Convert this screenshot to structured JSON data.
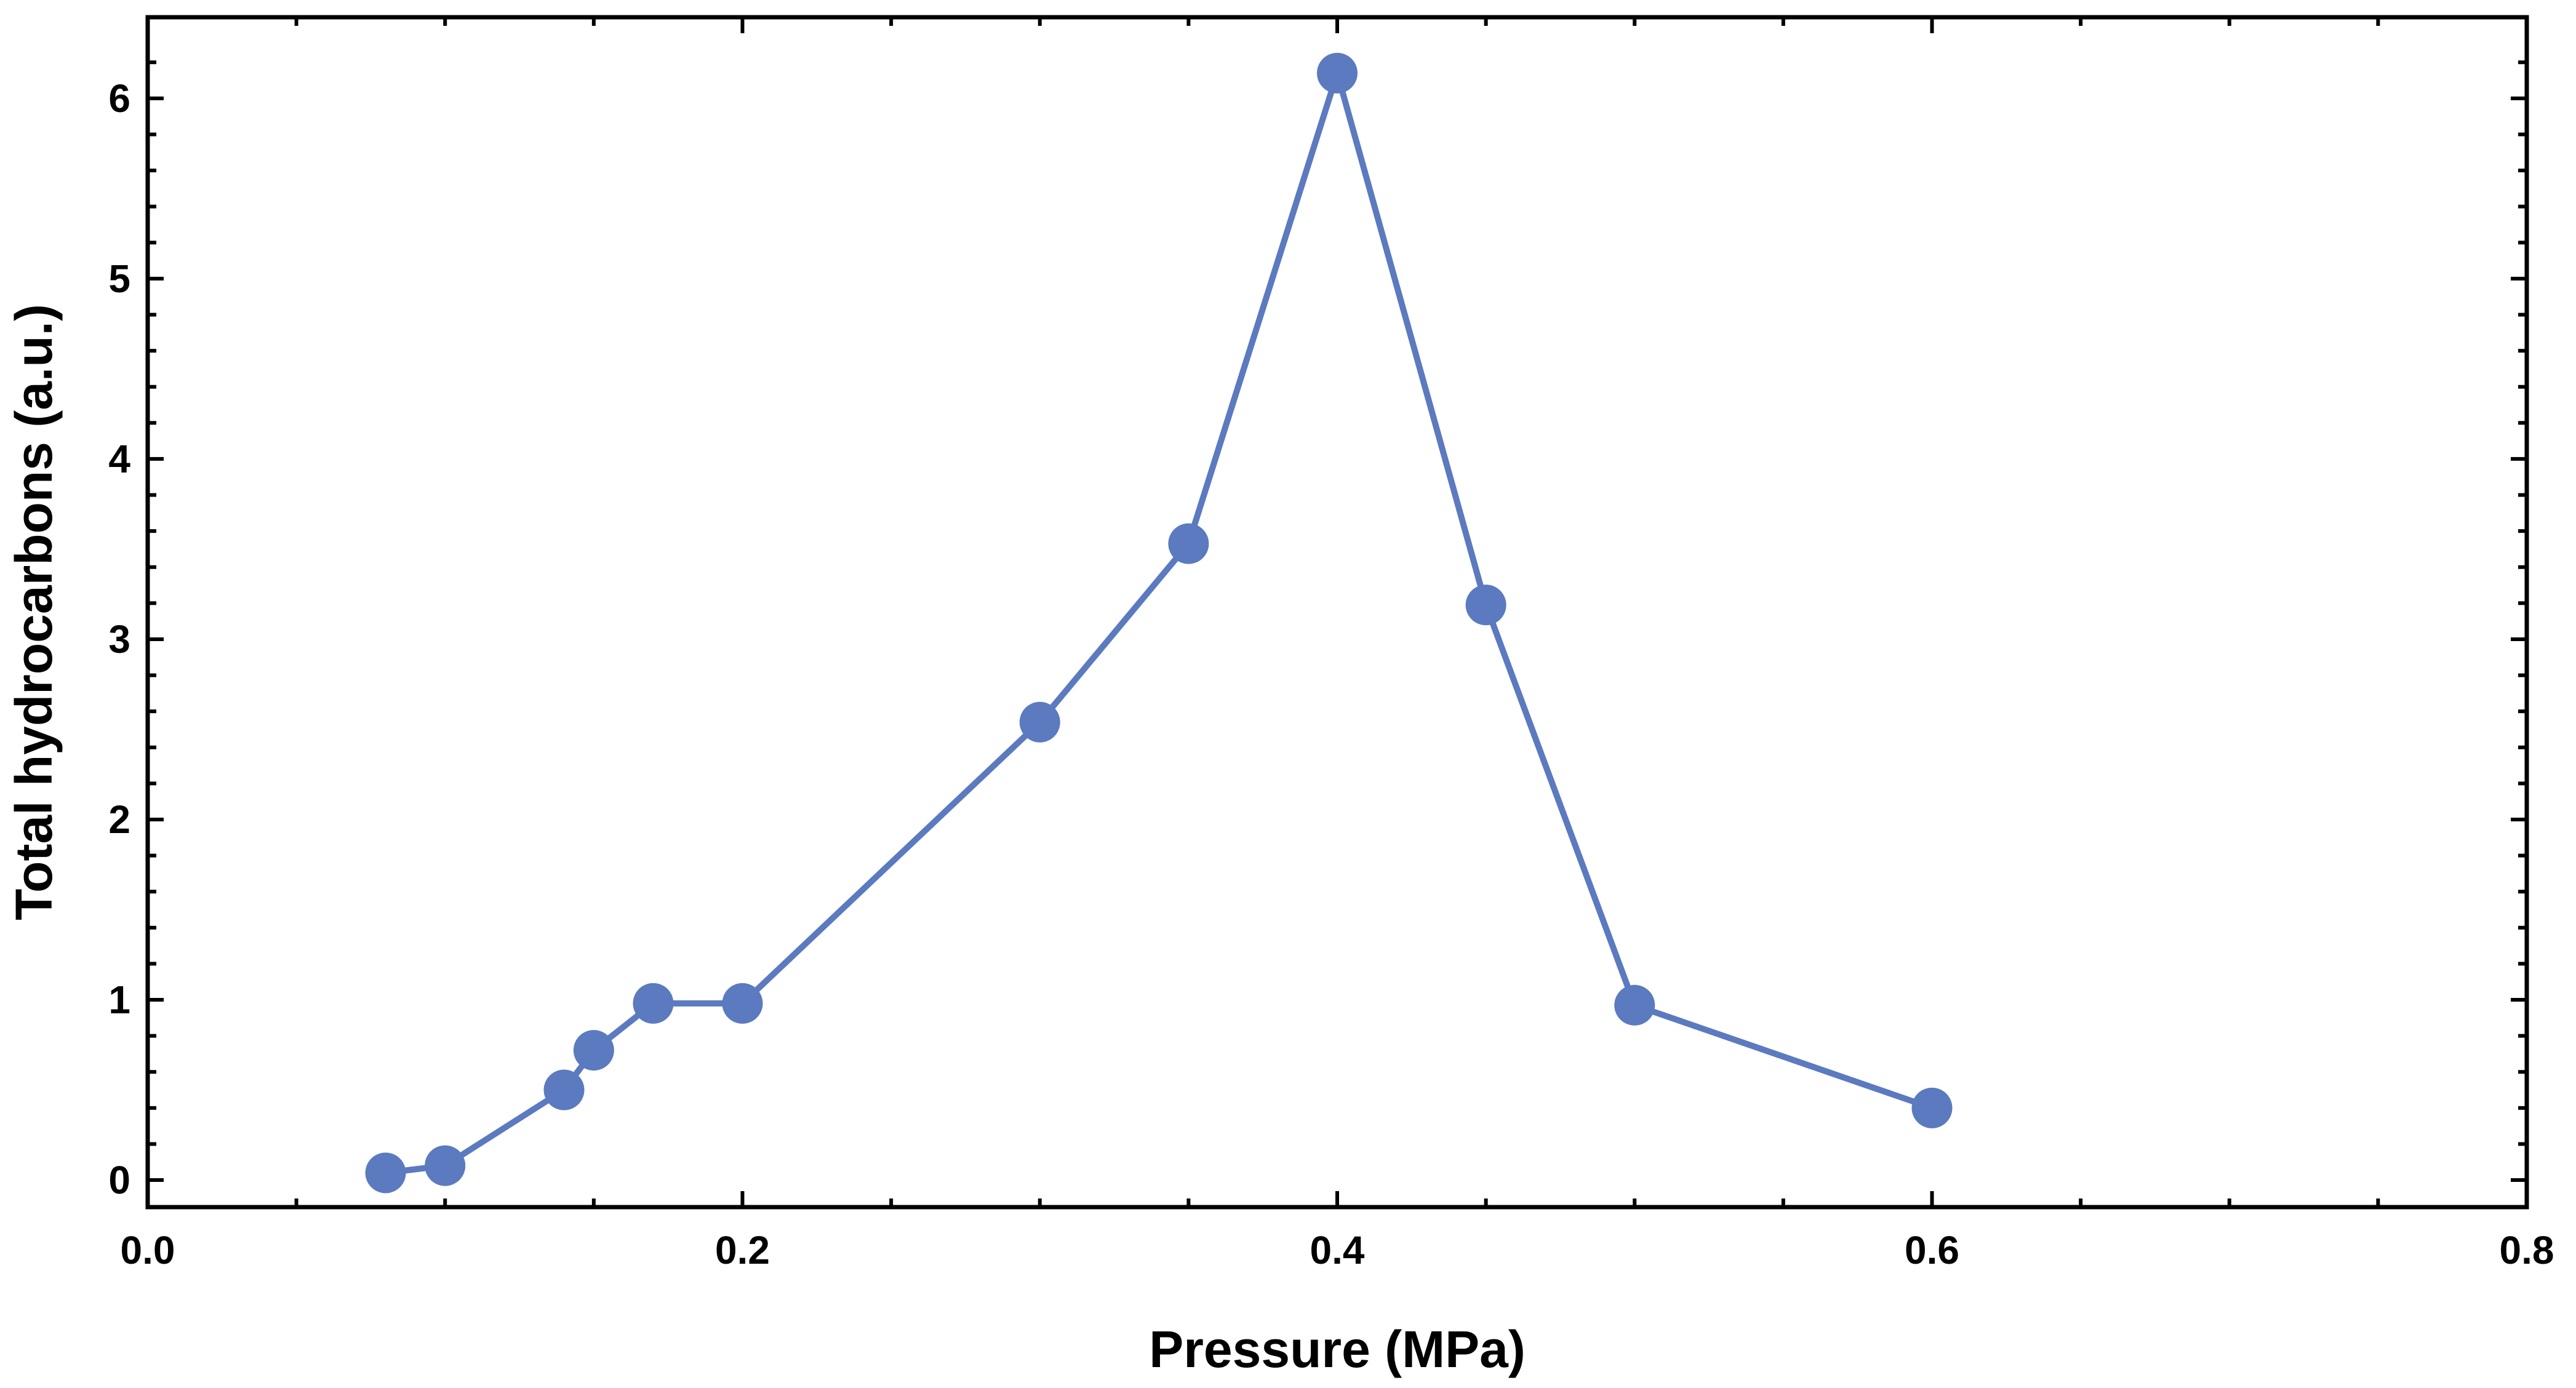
{
  "chart_data": {
    "type": "line",
    "title": "",
    "xlabel": "Pressure (MPa)",
    "ylabel": "Total hydrocarbons (a.u.)",
    "xlim": [
      0.0,
      0.8
    ],
    "ylim": [
      -0.15,
      6.45
    ],
    "x_ticks": [
      0.0,
      0.2,
      0.4,
      0.6,
      0.8
    ],
    "x_tick_labels": [
      "0.0",
      "0.2",
      "0.4",
      "0.6",
      "0.8"
    ],
    "x_minor_ticks": [
      0.05,
      0.1,
      0.15,
      0.25,
      0.3,
      0.35,
      0.45,
      0.5,
      0.55,
      0.65,
      0.7,
      0.75
    ],
    "y_ticks": [
      0,
      1,
      2,
      3,
      4,
      5,
      6
    ],
    "y_tick_labels": [
      "0",
      "1",
      "2",
      "3",
      "4",
      "5",
      "6"
    ],
    "y_minor_ticks": [
      0.2,
      0.4,
      0.6,
      0.8,
      1.2,
      1.4,
      1.6,
      1.8,
      2.2,
      2.4,
      2.6,
      2.8,
      3.2,
      3.4,
      3.6,
      3.8,
      4.2,
      4.4,
      4.6,
      4.8,
      5.2,
      5.4,
      5.6,
      5.8,
      6.2
    ],
    "grid": false,
    "series": [
      {
        "name": "Total hydrocarbons",
        "color": "#5b7abf",
        "marker": "circle",
        "x": [
          0.08,
          0.1,
          0.14,
          0.15,
          0.17,
          0.2,
          0.3,
          0.35,
          0.4,
          0.45,
          0.5,
          0.6
        ],
        "y": [
          0.04,
          0.08,
          0.5,
          0.72,
          0.98,
          0.98,
          2.54,
          3.53,
          6.14,
          3.19,
          0.97,
          0.4
        ]
      }
    ]
  }
}
